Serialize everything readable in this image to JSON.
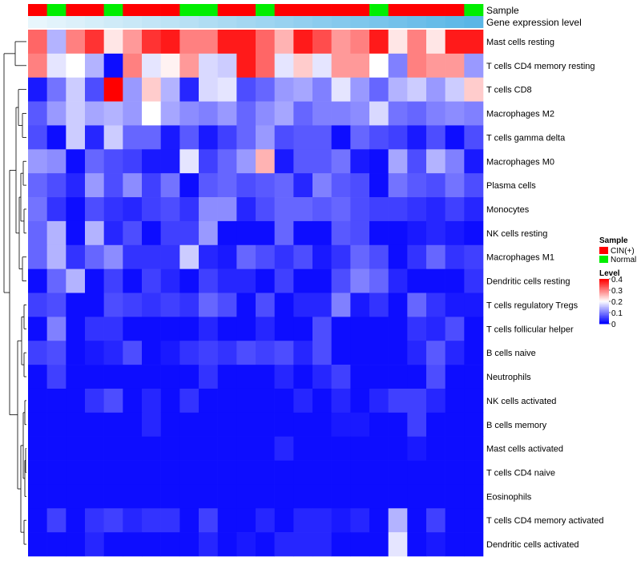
{
  "chart_data": {
    "type": "heatmap",
    "title": "",
    "annotations": {
      "sample_label": "Sample",
      "level_label": "Gene expression level",
      "sample_groups": [
        "CIN",
        "Normal",
        "CIN",
        "CIN",
        "Normal",
        "CIN",
        "CIN",
        "CIN",
        "Normal",
        "Normal",
        "CIN",
        "CIN",
        "Normal",
        "CIN",
        "CIN",
        "CIN",
        "CIN",
        "CIN",
        "Normal",
        "CIN",
        "CIN",
        "CIN",
        "CIN",
        "Normal"
      ]
    },
    "rows": [
      "Mast cells resting",
      "T cells CD4 memory resting",
      "T cells CD8",
      "Macrophages M2",
      "T cells gamma delta",
      "Macrophages M0",
      "Plasma cells",
      "Monocytes",
      "NK cells resting",
      "Macrophages M1",
      "Dendritic cells resting",
      "T cells regulatory  Tregs",
      "T cells follicular helper",
      "B cells naive",
      "Neutrophils",
      "NK cells activated",
      "B cells memory",
      "Mast cells activated",
      "T cells CD4 naive",
      "Eosinophils",
      "T cells CD4 memory activated",
      "Dendritic cells activated"
    ],
    "values": [
      [
        0.32,
        0.14,
        0.3,
        0.36,
        0.22,
        0.28,
        0.36,
        0.38,
        0.3,
        0.3,
        0.38,
        0.38,
        0.32,
        0.26,
        0.38,
        0.34,
        0.28,
        0.3,
        0.38,
        0.22,
        0.3,
        0.22,
        0.38,
        0.38
      ],
      [
        0.3,
        0.18,
        0.2,
        0.14,
        0.01,
        0.3,
        0.18,
        0.21,
        0.28,
        0.17,
        0.16,
        0.38,
        0.32,
        0.18,
        0.24,
        0.18,
        0.28,
        0.28,
        0.2,
        0.1,
        0.3,
        0.28,
        0.28,
        0.12
      ],
      [
        0.02,
        0.09,
        0.16,
        0.06,
        0.4,
        0.12,
        0.24,
        0.14,
        0.03,
        0.17,
        0.18,
        0.06,
        0.08,
        0.12,
        0.13,
        0.1,
        0.18,
        0.12,
        0.08,
        0.14,
        0.16,
        0.12,
        0.16,
        0.24
      ],
      [
        0.07,
        0.12,
        0.16,
        0.13,
        0.14,
        0.12,
        0.2,
        0.13,
        0.11,
        0.1,
        0.12,
        0.08,
        0.11,
        0.13,
        0.08,
        0.1,
        0.1,
        0.11,
        0.17,
        0.09,
        0.08,
        0.1,
        0.11,
        0.1
      ],
      [
        0.06,
        0.01,
        0.16,
        0.03,
        0.16,
        0.08,
        0.08,
        0.02,
        0.07,
        0.02,
        0.05,
        0.08,
        0.12,
        0.06,
        0.07,
        0.07,
        0.01,
        0.08,
        0.06,
        0.05,
        0.02,
        0.06,
        0.01,
        0.06
      ],
      [
        0.12,
        0.11,
        0.01,
        0.08,
        0.06,
        0.05,
        0.02,
        0.02,
        0.18,
        0.05,
        0.08,
        0.12,
        0.26,
        0.02,
        0.07,
        0.07,
        0.09,
        0.02,
        0.01,
        0.13,
        0.06,
        0.14,
        0.1,
        0.02
      ],
      [
        0.08,
        0.06,
        0.03,
        0.12,
        0.06,
        0.11,
        0.05,
        0.09,
        0.01,
        0.07,
        0.08,
        0.06,
        0.07,
        0.08,
        0.03,
        0.1,
        0.07,
        0.06,
        0.01,
        0.09,
        0.07,
        0.06,
        0.09,
        0.06
      ],
      [
        0.09,
        0.04,
        0.01,
        0.06,
        0.04,
        0.03,
        0.05,
        0.06,
        0.04,
        0.11,
        0.11,
        0.03,
        0.06,
        0.08,
        0.08,
        0.07,
        0.08,
        0.06,
        0.05,
        0.05,
        0.04,
        0.03,
        0.05,
        0.03
      ],
      [
        0.08,
        0.14,
        0.01,
        0.14,
        0.03,
        0.06,
        0.01,
        0.05,
        0.05,
        0.12,
        0.01,
        0.01,
        0.01,
        0.08,
        0.01,
        0.01,
        0.07,
        0.06,
        0.01,
        0.01,
        0.02,
        0.03,
        0.02,
        0.01
      ],
      [
        0.08,
        0.14,
        0.04,
        0.08,
        0.11,
        0.04,
        0.04,
        0.04,
        0.16,
        0.03,
        0.02,
        0.08,
        0.06,
        0.04,
        0.06,
        0.02,
        0.04,
        0.08,
        0.06,
        0.01,
        0.04,
        0.08,
        0.04,
        0.05
      ],
      [
        0.01,
        0.08,
        0.14,
        0.01,
        0.05,
        0.01,
        0.05,
        0.03,
        0.01,
        0.05,
        0.03,
        0.03,
        0.01,
        0.05,
        0.01,
        0.01,
        0.06,
        0.1,
        0.08,
        0.03,
        0.01,
        0.01,
        0.01,
        0.04
      ],
      [
        0.05,
        0.06,
        0.01,
        0.01,
        0.06,
        0.05,
        0.04,
        0.05,
        0.04,
        0.08,
        0.06,
        0.01,
        0.06,
        0.01,
        0.03,
        0.03,
        0.1,
        0.02,
        0.04,
        0.01,
        0.08,
        0.04,
        0.02,
        0.02
      ],
      [
        0.01,
        0.1,
        0.01,
        0.04,
        0.04,
        0.01,
        0.01,
        0.01,
        0.01,
        0.03,
        0.01,
        0.01,
        0.03,
        0.01,
        0.01,
        0.06,
        0.01,
        0.01,
        0.01,
        0.01,
        0.04,
        0.03,
        0.06,
        0.01
      ],
      [
        0.05,
        0.06,
        0.01,
        0.02,
        0.03,
        0.06,
        0.01,
        0.02,
        0.04,
        0.05,
        0.04,
        0.06,
        0.05,
        0.06,
        0.03,
        0.06,
        0.01,
        0.01,
        0.01,
        0.01,
        0.03,
        0.07,
        0.03,
        0.01
      ],
      [
        0.01,
        0.05,
        0.01,
        0.01,
        0.01,
        0.01,
        0.01,
        0.01,
        0.01,
        0.04,
        0.01,
        0.01,
        0.01,
        0.03,
        0.01,
        0.03,
        0.05,
        0.01,
        0.01,
        0.01,
        0.01,
        0.06,
        0.01,
        0.01
      ],
      [
        0.01,
        0.01,
        0.01,
        0.04,
        0.06,
        0.01,
        0.03,
        0.01,
        0.04,
        0.01,
        0.01,
        0.01,
        0.01,
        0.01,
        0.03,
        0.01,
        0.03,
        0.01,
        0.03,
        0.05,
        0.05,
        0.03,
        0.01,
        0.01
      ],
      [
        0.01,
        0.01,
        0.01,
        0.01,
        0.01,
        0.01,
        0.03,
        0.01,
        0.01,
        0.01,
        0.01,
        0.01,
        0.01,
        0.01,
        0.01,
        0.01,
        0.02,
        0.02,
        0.01,
        0.01,
        0.05,
        0.01,
        0.01,
        0.01
      ],
      [
        0.01,
        0.01,
        0.01,
        0.01,
        0.01,
        0.01,
        0.01,
        0.01,
        0.01,
        0.01,
        0.01,
        0.01,
        0.01,
        0.03,
        0.01,
        0.01,
        0.01,
        0.01,
        0.01,
        0.01,
        0.02,
        0.01,
        0.01,
        0.01
      ],
      [
        0.01,
        0.01,
        0.01,
        0.01,
        0.01,
        0.01,
        0.01,
        0.01,
        0.01,
        0.01,
        0.01,
        0.01,
        0.01,
        0.01,
        0.01,
        0.01,
        0.01,
        0.01,
        0.01,
        0.01,
        0.01,
        0.01,
        0.01,
        0.01
      ],
      [
        0.01,
        0.01,
        0.01,
        0.01,
        0.01,
        0.01,
        0.01,
        0.01,
        0.01,
        0.01,
        0.01,
        0.01,
        0.01,
        0.01,
        0.01,
        0.01,
        0.01,
        0.01,
        0.01,
        0.01,
        0.01,
        0.01,
        0.01,
        0.01
      ],
      [
        0.01,
        0.05,
        0.01,
        0.04,
        0.05,
        0.03,
        0.04,
        0.04,
        0.01,
        0.05,
        0.01,
        0.01,
        0.03,
        0.01,
        0.03,
        0.03,
        0.02,
        0.03,
        0.01,
        0.14,
        0.01,
        0.05,
        0.01,
        0.01
      ],
      [
        0.01,
        0.01,
        0.01,
        0.03,
        0.01,
        0.01,
        0.01,
        0.01,
        0.01,
        0.03,
        0.01,
        0.02,
        0.01,
        0.03,
        0.03,
        0.03,
        0.01,
        0.01,
        0.01,
        0.18,
        0.01,
        0.02,
        0.01,
        0.01
      ]
    ],
    "color_scale": {
      "low": "#0000ff",
      "mid": "#ffffff",
      "high": "#ff0000",
      "ticks": [
        "0.4",
        "0.3",
        "0.2",
        "0.1",
        "0"
      ]
    },
    "legend": {
      "sample_title": "Sample",
      "sample_entries": [
        {
          "label": "CIN(+)",
          "color": "#ff0000"
        },
        {
          "label": "Normal",
          "color": "#00ee00"
        }
      ],
      "level_title": "Level",
      "placement": "right"
    },
    "level_bar_color": "#5ab6e6",
    "range": [
      0,
      0.4
    ]
  }
}
